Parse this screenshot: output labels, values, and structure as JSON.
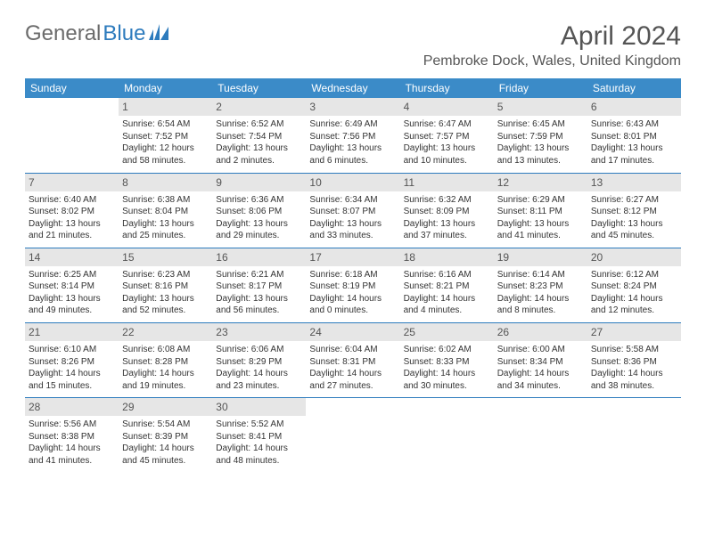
{
  "logo": {
    "text1": "General",
    "text2": "Blue"
  },
  "title": "April 2024",
  "location": "Pembroke Dock, Wales, United Kingdom",
  "colors": {
    "header_bg": "#3b8bc8",
    "header_text": "#ffffff",
    "daynum_bg": "#e6e6e6",
    "rule": "#2d7bbd",
    "logo_gray": "#6b6b6b",
    "logo_blue": "#2d7bbd"
  },
  "day_headers": [
    "Sunday",
    "Monday",
    "Tuesday",
    "Wednesday",
    "Thursday",
    "Friday",
    "Saturday"
  ],
  "weeks": [
    [
      null,
      {
        "n": "1",
        "lines": [
          "Sunrise: 6:54 AM",
          "Sunset: 7:52 PM",
          "Daylight: 12 hours and 58 minutes."
        ]
      },
      {
        "n": "2",
        "lines": [
          "Sunrise: 6:52 AM",
          "Sunset: 7:54 PM",
          "Daylight: 13 hours and 2 minutes."
        ]
      },
      {
        "n": "3",
        "lines": [
          "Sunrise: 6:49 AM",
          "Sunset: 7:56 PM",
          "Daylight: 13 hours and 6 minutes."
        ]
      },
      {
        "n": "4",
        "lines": [
          "Sunrise: 6:47 AM",
          "Sunset: 7:57 PM",
          "Daylight: 13 hours and 10 minutes."
        ]
      },
      {
        "n": "5",
        "lines": [
          "Sunrise: 6:45 AM",
          "Sunset: 7:59 PM",
          "Daylight: 13 hours and 13 minutes."
        ]
      },
      {
        "n": "6",
        "lines": [
          "Sunrise: 6:43 AM",
          "Sunset: 8:01 PM",
          "Daylight: 13 hours and 17 minutes."
        ]
      }
    ],
    [
      {
        "n": "7",
        "lines": [
          "Sunrise: 6:40 AM",
          "Sunset: 8:02 PM",
          "Daylight: 13 hours and 21 minutes."
        ]
      },
      {
        "n": "8",
        "lines": [
          "Sunrise: 6:38 AM",
          "Sunset: 8:04 PM",
          "Daylight: 13 hours and 25 minutes."
        ]
      },
      {
        "n": "9",
        "lines": [
          "Sunrise: 6:36 AM",
          "Sunset: 8:06 PM",
          "Daylight: 13 hours and 29 minutes."
        ]
      },
      {
        "n": "10",
        "lines": [
          "Sunrise: 6:34 AM",
          "Sunset: 8:07 PM",
          "Daylight: 13 hours and 33 minutes."
        ]
      },
      {
        "n": "11",
        "lines": [
          "Sunrise: 6:32 AM",
          "Sunset: 8:09 PM",
          "Daylight: 13 hours and 37 minutes."
        ]
      },
      {
        "n": "12",
        "lines": [
          "Sunrise: 6:29 AM",
          "Sunset: 8:11 PM",
          "Daylight: 13 hours and 41 minutes."
        ]
      },
      {
        "n": "13",
        "lines": [
          "Sunrise: 6:27 AM",
          "Sunset: 8:12 PM",
          "Daylight: 13 hours and 45 minutes."
        ]
      }
    ],
    [
      {
        "n": "14",
        "lines": [
          "Sunrise: 6:25 AM",
          "Sunset: 8:14 PM",
          "Daylight: 13 hours and 49 minutes."
        ]
      },
      {
        "n": "15",
        "lines": [
          "Sunrise: 6:23 AM",
          "Sunset: 8:16 PM",
          "Daylight: 13 hours and 52 minutes."
        ]
      },
      {
        "n": "16",
        "lines": [
          "Sunrise: 6:21 AM",
          "Sunset: 8:17 PM",
          "Daylight: 13 hours and 56 minutes."
        ]
      },
      {
        "n": "17",
        "lines": [
          "Sunrise: 6:18 AM",
          "Sunset: 8:19 PM",
          "Daylight: 14 hours and 0 minutes."
        ]
      },
      {
        "n": "18",
        "lines": [
          "Sunrise: 6:16 AM",
          "Sunset: 8:21 PM",
          "Daylight: 14 hours and 4 minutes."
        ]
      },
      {
        "n": "19",
        "lines": [
          "Sunrise: 6:14 AM",
          "Sunset: 8:23 PM",
          "Daylight: 14 hours and 8 minutes."
        ]
      },
      {
        "n": "20",
        "lines": [
          "Sunrise: 6:12 AM",
          "Sunset: 8:24 PM",
          "Daylight: 14 hours and 12 minutes."
        ]
      }
    ],
    [
      {
        "n": "21",
        "lines": [
          "Sunrise: 6:10 AM",
          "Sunset: 8:26 PM",
          "Daylight: 14 hours and 15 minutes."
        ]
      },
      {
        "n": "22",
        "lines": [
          "Sunrise: 6:08 AM",
          "Sunset: 8:28 PM",
          "Daylight: 14 hours and 19 minutes."
        ]
      },
      {
        "n": "23",
        "lines": [
          "Sunrise: 6:06 AM",
          "Sunset: 8:29 PM",
          "Daylight: 14 hours and 23 minutes."
        ]
      },
      {
        "n": "24",
        "lines": [
          "Sunrise: 6:04 AM",
          "Sunset: 8:31 PM",
          "Daylight: 14 hours and 27 minutes."
        ]
      },
      {
        "n": "25",
        "lines": [
          "Sunrise: 6:02 AM",
          "Sunset: 8:33 PM",
          "Daylight: 14 hours and 30 minutes."
        ]
      },
      {
        "n": "26",
        "lines": [
          "Sunrise: 6:00 AM",
          "Sunset: 8:34 PM",
          "Daylight: 14 hours and 34 minutes."
        ]
      },
      {
        "n": "27",
        "lines": [
          "Sunrise: 5:58 AM",
          "Sunset: 8:36 PM",
          "Daylight: 14 hours and 38 minutes."
        ]
      }
    ],
    [
      {
        "n": "28",
        "lines": [
          "Sunrise: 5:56 AM",
          "Sunset: 8:38 PM",
          "Daylight: 14 hours and 41 minutes."
        ]
      },
      {
        "n": "29",
        "lines": [
          "Sunrise: 5:54 AM",
          "Sunset: 8:39 PM",
          "Daylight: 14 hours and 45 minutes."
        ]
      },
      {
        "n": "30",
        "lines": [
          "Sunrise: 5:52 AM",
          "Sunset: 8:41 PM",
          "Daylight: 14 hours and 48 minutes."
        ]
      },
      null,
      null,
      null,
      null
    ]
  ]
}
